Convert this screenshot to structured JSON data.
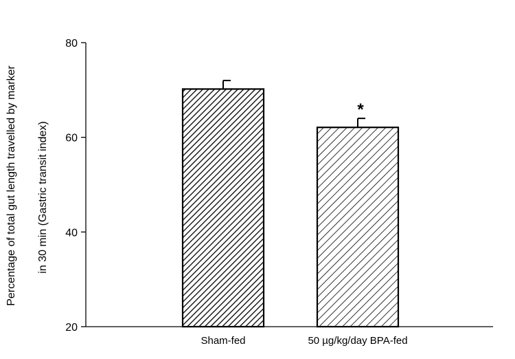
{
  "chart_data": {
    "type": "bar",
    "categories": [
      "Sham-fed",
      "50 µg/kg/day BPA-fed"
    ],
    "values": [
      70.2,
      62.1
    ],
    "errors": [
      1.8,
      1.9
    ],
    "significance": [
      "",
      "*"
    ],
    "ylim": [
      20,
      80
    ],
    "yticks": [
      20,
      40,
      60,
      80
    ],
    "ylabel_lines": [
      "Percentage of total gut length travelled by marker",
      "in 30 min  (Gastric transit index)"
    ],
    "xlabel": "",
    "title": "",
    "grid": false,
    "bar_fill": "diagonal-hatch",
    "bar_styles": [
      "dense-hatch",
      "sparse-hatch"
    ]
  }
}
